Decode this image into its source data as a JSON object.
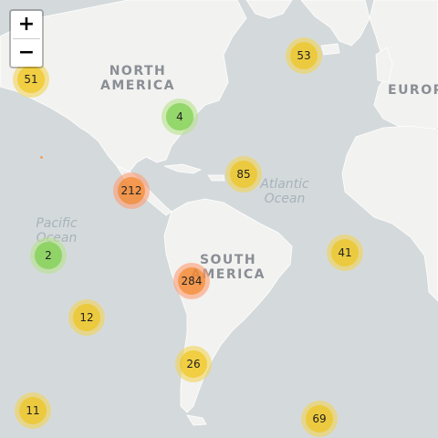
{
  "map": {
    "zoom_in_label": "+",
    "zoom_out_label": "−",
    "labels": {
      "north_america": [
        "NORTH",
        "AMERICA"
      ],
      "south_america": [
        "SOUTH",
        "AMERICA"
      ],
      "europe": "EUROPE",
      "pacific_ocean": [
        "Pacific",
        "Ocean"
      ],
      "atlantic_ocean": [
        "Atlantic",
        "Ocean"
      ]
    },
    "clusters": [
      {
        "id": "c51",
        "count": "51",
        "size": "medium"
      },
      {
        "id": "c53",
        "count": "53",
        "size": "medium"
      },
      {
        "id": "c4",
        "count": "4",
        "size": "small"
      },
      {
        "id": "c85",
        "count": "85",
        "size": "medium"
      },
      {
        "id": "c212",
        "count": "212",
        "size": "large"
      },
      {
        "id": "c2",
        "count": "2",
        "size": "small"
      },
      {
        "id": "c41",
        "count": "41",
        "size": "medium"
      },
      {
        "id": "c284",
        "count": "284",
        "size": "large"
      },
      {
        "id": "c12",
        "count": "12",
        "size": "medium"
      },
      {
        "id": "c26",
        "count": "26",
        "size": "medium"
      },
      {
        "id": "c11",
        "count": "11",
        "size": "medium"
      },
      {
        "id": "c69",
        "count": "69",
        "size": "medium"
      }
    ],
    "colors": {
      "water": "#d4dadc",
      "land": "#f2f2f0",
      "small_cluster": "#6ecc39",
      "medium_cluster": "#f0c20c",
      "large_cluster": "#f18017"
    }
  }
}
